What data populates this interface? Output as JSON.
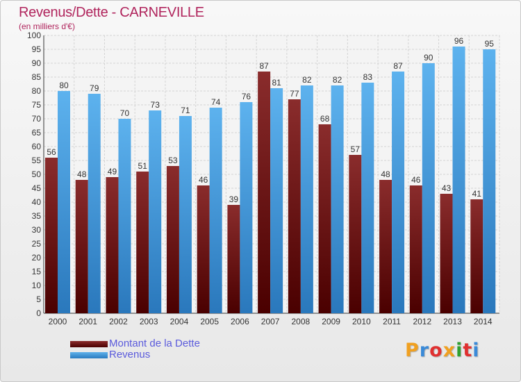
{
  "header": {
    "title": "Revenus/Dette - CARNEVILLE",
    "subtitle": "(en milliers d'€)"
  },
  "legend": {
    "debt_label": "Montant de la Dette",
    "revenue_label": "Revenus"
  },
  "logo": {
    "letters": [
      "P",
      "r",
      "o",
      "x",
      "i",
      "t",
      "i"
    ],
    "colors": [
      "#f0a020",
      "#3a8ad8",
      "#e03030",
      "#f0a020",
      "#30a030",
      "#e03030",
      "#3a8ad8"
    ]
  },
  "colors": {
    "debt": "#6e1a1a",
    "revenue": "#4aa3e0",
    "title": "#b0245c",
    "legend_text": "#5a5adc"
  },
  "chart_data": {
    "type": "bar",
    "title": "Revenus/Dette - CARNEVILLE",
    "subtitle": "(en milliers d'€)",
    "categories": [
      "2000",
      "2001",
      "2002",
      "2003",
      "2004",
      "2005",
      "2006",
      "2007",
      "2008",
      "2009",
      "2010",
      "2011",
      "2012",
      "2013",
      "2014"
    ],
    "series": [
      {
        "name": "Montant de la Dette",
        "values": [
          56,
          48,
          49,
          51,
          53,
          46,
          39,
          87,
          77,
          68,
          57,
          48,
          46,
          43,
          41
        ]
      },
      {
        "name": "Revenus",
        "values": [
          80,
          79,
          70,
          73,
          71,
          74,
          76,
          81,
          82,
          82,
          83,
          87,
          90,
          96,
          95
        ]
      }
    ],
    "ylim": [
      0,
      100
    ],
    "y_tick_step": 5,
    "grid": true,
    "legend_position": "bottom-left",
    "data_labels": true
  }
}
